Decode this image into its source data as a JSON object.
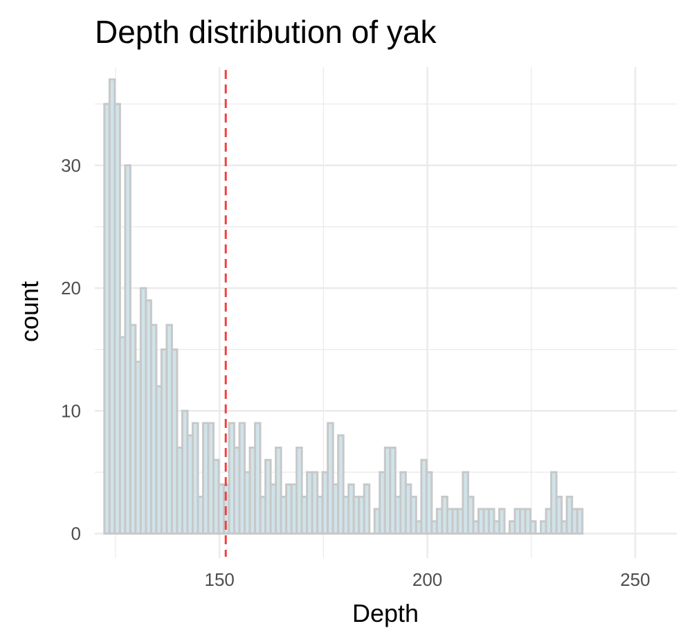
{
  "chart_data": {
    "type": "bar",
    "title": "Depth distribution of yak",
    "xlabel": "Depth",
    "ylabel": "count",
    "xlim": [
      120,
      260
    ],
    "ylim": [
      -2,
      38
    ],
    "x_ticks": [
      150,
      200,
      250
    ],
    "x_tick_labels": [
      "150",
      "200",
      "250"
    ],
    "y_ticks": [
      0,
      10,
      20,
      30
    ],
    "y_tick_labels": [
      "0",
      "10",
      "20",
      "30"
    ],
    "grid": true,
    "bin_width": 1.25,
    "bins_start": 122.3,
    "values": [
      35,
      37,
      35,
      16,
      30,
      17,
      14,
      20,
      19,
      17,
      12,
      15,
      17,
      15,
      7,
      10,
      8,
      9,
      3,
      9,
      9,
      6,
      4,
      4,
      9,
      7,
      9,
      5,
      7,
      9,
      3,
      6,
      4,
      7,
      3,
      4,
      4,
      7,
      3,
      5,
      5,
      3,
      5,
      9,
      4,
      8,
      3,
      4,
      3,
      3,
      4,
      0,
      2,
      5,
      7,
      7,
      3,
      5,
      4,
      3,
      1,
      6,
      5,
      1,
      2,
      3,
      2,
      2,
      2,
      5,
      3,
      1,
      2,
      2,
      2,
      1,
      2,
      0,
      1,
      2,
      2,
      2,
      1,
      0,
      1,
      2,
      5,
      3,
      1,
      3,
      2,
      2
    ],
    "reference_line": {
      "x": 151.5,
      "style": "dashed",
      "color": "#f04040"
    },
    "bar_fill": "#cfe4ea",
    "bar_stroke": "#c8c8c8",
    "grid_color": "#ebebeb"
  }
}
